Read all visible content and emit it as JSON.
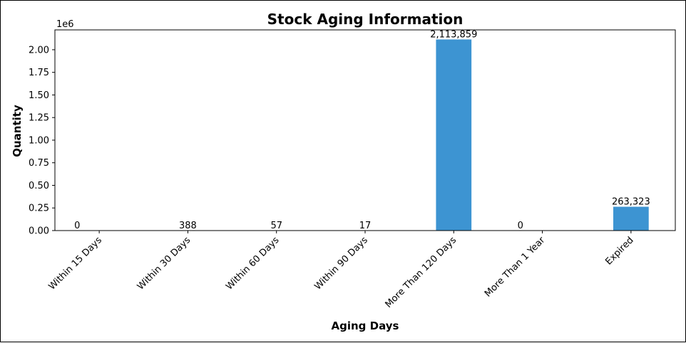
{
  "chart_data": {
    "type": "bar",
    "title": "Stock Aging Information",
    "xlabel": "Aging Days",
    "ylabel": "Quantity",
    "y_offset_text": "1e6",
    "categories": [
      "Within 15 Days",
      "Within 30 Days",
      "Within 60 Days",
      "Within 90 Days",
      "More Than 120 Days",
      "More Than 1 Year",
      "Expired"
    ],
    "values": [
      0,
      388,
      57,
      17,
      2113859,
      0,
      263323
    ],
    "data_labels": [
      "0",
      "388",
      "57",
      "17",
      "2,113,859",
      "0",
      "263,323"
    ],
    "ylim": [
      0,
      2219552
    ],
    "yticks": [
      0,
      250000,
      500000,
      750000,
      1000000,
      1250000,
      1500000,
      1750000,
      2000000
    ],
    "ytick_labels": [
      "0.00",
      "0.25",
      "0.50",
      "0.75",
      "1.00",
      "1.25",
      "1.50",
      "1.75",
      "2.00"
    ],
    "bar_color": "#3d94d2",
    "grid": false,
    "legend": "none"
  }
}
